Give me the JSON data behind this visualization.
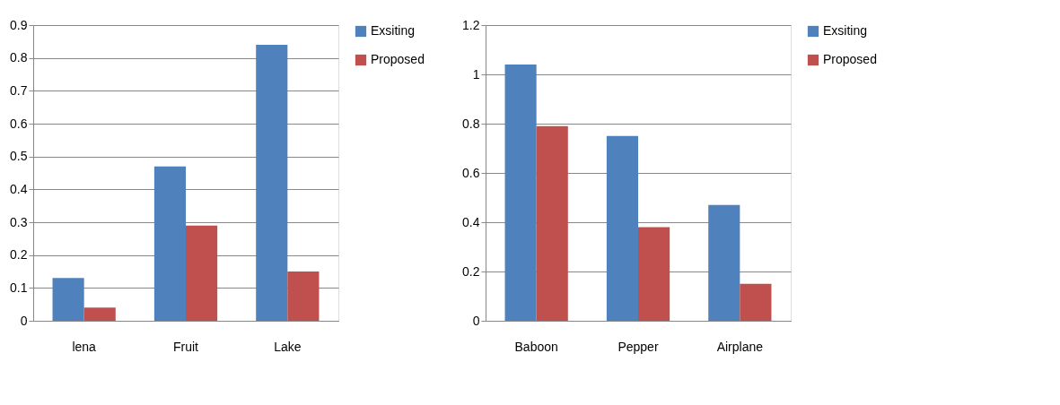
{
  "chart_data": [
    {
      "type": "bar",
      "categories": [
        "lena",
        "Fruit",
        "Lake"
      ],
      "series": [
        {
          "name": "Exsiting",
          "color": "#4f81bd",
          "values": [
            0.13,
            0.47,
            0.84
          ]
        },
        {
          "name": "Proposed",
          "color": "#c0504d",
          "values": [
            0.04,
            0.29,
            0.15
          ]
        }
      ],
      "ylim": [
        0,
        0.9
      ],
      "yticks": [
        0,
        0.1,
        0.2,
        0.3,
        0.4,
        0.5,
        0.6,
        0.7,
        0.8,
        0.9
      ],
      "grid": "y",
      "legend": "right"
    },
    {
      "type": "bar",
      "categories": [
        "Baboon",
        "Pepper",
        "Airplane"
      ],
      "series": [
        {
          "name": "Exsiting",
          "color": "#4f81bd",
          "values": [
            1.04,
            0.75,
            0.47
          ]
        },
        {
          "name": "Proposed",
          "color": "#c0504d",
          "values": [
            0.79,
            0.38,
            0.15
          ]
        }
      ],
      "ylim": [
        0,
        1.2
      ],
      "yticks": [
        0,
        0.2,
        0.4,
        0.6,
        0.8,
        1,
        1.2
      ],
      "grid": "y",
      "legend": "right"
    }
  ]
}
